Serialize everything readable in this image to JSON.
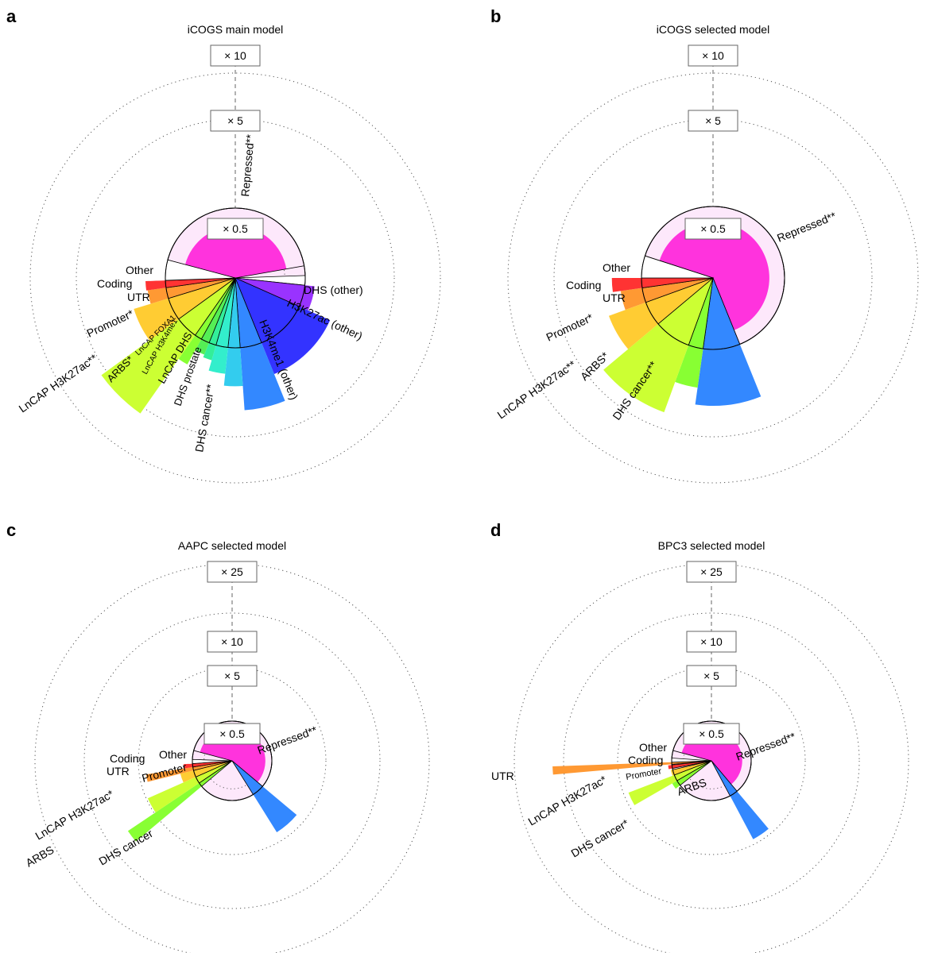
{
  "chart_data": [
    {
      "panel": "a",
      "type": "radial-bar",
      "title": "iCOGS main model",
      "ticks": [
        "× 10",
        "× 5",
        "× 0.5"
      ],
      "slices": [
        {
          "label": "Repressed**",
          "color": "#ff33dd",
          "value": 0.55
        },
        {
          "label": "DHS (other)",
          "color": "#ffffff",
          "value": 1.1
        },
        {
          "label": "H3K27ac (other)",
          "color": "#9933ff",
          "value": 1.3
        },
        {
          "label": "H3K4me1 (other)",
          "color": "#3333ff",
          "value": 2.2
        },
        {
          "label": "DHS cancer**",
          "color": "#3388ff",
          "value": 3.6
        },
        {
          "label": "DHS prostate",
          "color": "#33ccee",
          "value": 2.4
        },
        {
          "label": "LnCAP DHS",
          "color": "#33eecc",
          "value": 1.9
        },
        {
          "label": "LnCAP H3K4me1",
          "color": "#33ee99",
          "value": 1.5
        },
        {
          "label": "LnCAP FOXA1",
          "color": "#55ee55",
          "value": 1.4
        },
        {
          "label": "ARBS*",
          "color": "#88ff33",
          "value": 2.0
        },
        {
          "label": "LnCAP H3K27ac**",
          "color": "#ccff33",
          "value": 5.6
        },
        {
          "label": "Promoter*",
          "color": "#ffcc33",
          "value": 2.3
        },
        {
          "label": "UTR",
          "color": "#ff9933",
          "value": 1.6
        },
        {
          "label": "Coding",
          "color": "#ff3333",
          "value": 1.65
        },
        {
          "label": "Other",
          "color": "#ffffff",
          "value": 1.5
        }
      ]
    },
    {
      "panel": "b",
      "type": "radial-bar",
      "title": "iCOGS selected model",
      "ticks": [
        "× 10",
        "× 5",
        "× 0.5"
      ],
      "slices": [
        {
          "label": "Repressed**",
          "color": "#ff33dd",
          "value": 0.62
        },
        {
          "label": "DHS cancer**",
          "color": "#3388ff",
          "value": 3.2
        },
        {
          "label": "ARBS*",
          "color": "#88ff33",
          "value": 2.4
        },
        {
          "label": "LnCAP H3K27ac**",
          "color": "#ccff33",
          "value": 4.0
        },
        {
          "label": "Promoter*",
          "color": "#ffcc33",
          "value": 2.4
        },
        {
          "label": "UTR",
          "color": "#ff9933",
          "value": 1.7
        },
        {
          "label": "Coding",
          "color": "#ff3333",
          "value": 2.0
        },
        {
          "label": "Other",
          "color": "#ffffff",
          "value": 1.6
        }
      ]
    },
    {
      "panel": "c",
      "type": "radial-bar",
      "title": "AAPC selected model",
      "ticks": [
        "× 25",
        "× 10",
        "× 5",
        "× 0.5"
      ],
      "slices": [
        {
          "label": "Repressed**",
          "color": "#ff33dd",
          "value": 0.7
        },
        {
          "label": "DHS cancer",
          "color": "#3388ff",
          "value": 4.5
        },
        {
          "label": "ARBS",
          "color": "#88ff33",
          "value": 10.0
        },
        {
          "label": "LnCAP H3K27ac*",
          "color": "#ccff33",
          "value": 5.4
        },
        {
          "label": "Promoter",
          "color": "#ffcc33",
          "value": 1.8
        },
        {
          "label": "UTR",
          "color": "#ff9933",
          "value": 4.8
        },
        {
          "label": "Coding",
          "color": "#ff3333",
          "value": 1.5
        },
        {
          "label": "Other",
          "color": "#ffffff",
          "value": 1.2
        }
      ]
    },
    {
      "panel": "d",
      "type": "radial-bar",
      "title": "BPC3 selected model",
      "ticks": [
        "× 25",
        "× 10",
        "× 5",
        "× 0.5"
      ],
      "slices": [
        {
          "label": "Repressed**",
          "color": "#ff33dd",
          "value": 0.6
        },
        {
          "label": "DHS cancer*",
          "color": "#3388ff",
          "value": 5.0
        },
        {
          "label": "ARBS",
          "color": "#88ff33",
          "value": 1.3
        },
        {
          "label": "LnCAP H3K27ac*",
          "color": "#ccff33",
          "value": 5.0
        },
        {
          "label": "Promoter",
          "color": "#ffcc33",
          "value": 1.1
        },
        {
          "label": "UTR",
          "color": "#ff9933",
          "value": 16.0
        },
        {
          "label": "Coding",
          "color": "#ff3333",
          "value": 1.2
        },
        {
          "label": "Other",
          "color": "#ffffff",
          "value": 1.0
        }
      ]
    }
  ]
}
